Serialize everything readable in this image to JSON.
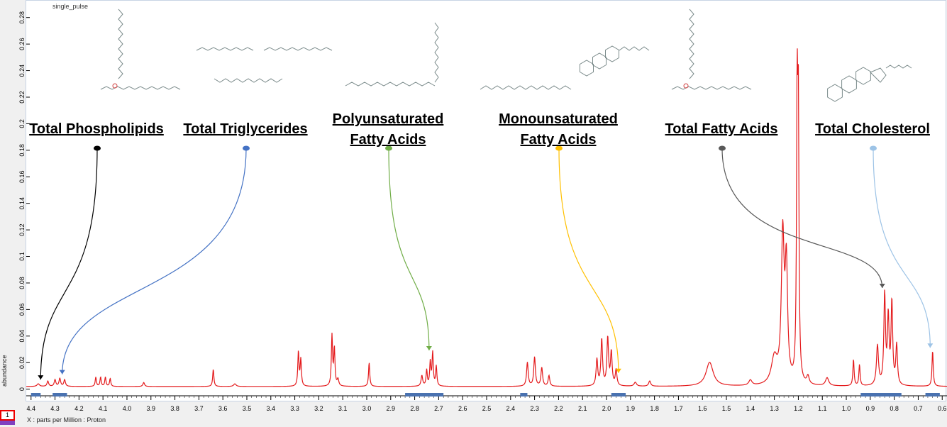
{
  "window": {
    "tab_label": "single_pulse",
    "legend_number": "1"
  },
  "colors": {
    "spectrum": "#e41a1c",
    "frame_bg": "#ffffff",
    "page_bg": "#f0f0f0",
    "integral_bar": "#4a72b0"
  },
  "chart_data": {
    "type": "line",
    "title": "",
    "xlabel": "X : parts per Million : Proton",
    "ylabel": "abundance",
    "xlim": [
      4.42,
      0.58
    ],
    "ylim": [
      -0.005,
      0.29
    ],
    "x_reversed": true,
    "grid": false,
    "x_ticks": [
      "4.4",
      "4.3",
      "4.2",
      "4.1",
      "4.0",
      "3.9",
      "3.8",
      "3.7",
      "3.6",
      "3.5",
      "3.4",
      "3.3",
      "3.2",
      "3.1",
      "3.0",
      "2.9",
      "2.8",
      "2.7",
      "2.6",
      "2.5",
      "2.4",
      "2.3",
      "2.2",
      "2.1",
      "2.0",
      "1.9",
      "1.8",
      "1.7",
      "1.6",
      "1.5",
      "1.4",
      "1.3",
      "1.2",
      "1.1",
      "1.0",
      "0.9",
      "0.8",
      "0.7",
      "0.6"
    ],
    "y_ticks": [
      "0",
      "0.02",
      "0.04",
      "0.06",
      "0.08",
      "0.1",
      "0.12",
      "0.14",
      "0.16",
      "0.18",
      "0.2",
      "0.22",
      "0.24",
      "0.26",
      "0.28"
    ],
    "baseline": 0.002,
    "peaks": [
      {
        "x": 4.37,
        "y": 0.002,
        "w": 0.006
      },
      {
        "x": 4.33,
        "y": 0.004,
        "w": 0.004
      },
      {
        "x": 4.3,
        "y": 0.005,
        "w": 0.004
      },
      {
        "x": 4.28,
        "y": 0.006,
        "w": 0.004
      },
      {
        "x": 4.26,
        "y": 0.005,
        "w": 0.004
      },
      {
        "x": 4.13,
        "y": 0.007,
        "w": 0.003
      },
      {
        "x": 4.11,
        "y": 0.007,
        "w": 0.003
      },
      {
        "x": 4.09,
        "y": 0.007,
        "w": 0.003
      },
      {
        "x": 4.07,
        "y": 0.006,
        "w": 0.003
      },
      {
        "x": 3.93,
        "y": 0.003,
        "w": 0.004
      },
      {
        "x": 3.64,
        "y": 0.013,
        "w": 0.003
      },
      {
        "x": 3.55,
        "y": 0.002,
        "w": 0.006
      },
      {
        "x": 3.285,
        "y": 0.026,
        "w": 0.003
      },
      {
        "x": 3.275,
        "y": 0.02,
        "w": 0.003
      },
      {
        "x": 3.145,
        "y": 0.038,
        "w": 0.003
      },
      {
        "x": 3.135,
        "y": 0.028,
        "w": 0.003
      },
      {
        "x": 3.12,
        "y": 0.005,
        "w": 0.004
      },
      {
        "x": 2.99,
        "y": 0.018,
        "w": 0.003
      },
      {
        "x": 2.77,
        "y": 0.008,
        "w": 0.004
      },
      {
        "x": 2.75,
        "y": 0.012,
        "w": 0.003
      },
      {
        "x": 2.735,
        "y": 0.018,
        "w": 0.003
      },
      {
        "x": 2.725,
        "y": 0.025,
        "w": 0.003
      },
      {
        "x": 2.71,
        "y": 0.015,
        "w": 0.003
      },
      {
        "x": 2.33,
        "y": 0.018,
        "w": 0.004
      },
      {
        "x": 2.3,
        "y": 0.022,
        "w": 0.004
      },
      {
        "x": 2.27,
        "y": 0.014,
        "w": 0.004
      },
      {
        "x": 2.24,
        "y": 0.008,
        "w": 0.004
      },
      {
        "x": 2.04,
        "y": 0.02,
        "w": 0.004
      },
      {
        "x": 2.02,
        "y": 0.035,
        "w": 0.004
      },
      {
        "x": 1.995,
        "y": 0.036,
        "w": 0.004
      },
      {
        "x": 1.98,
        "y": 0.025,
        "w": 0.004
      },
      {
        "x": 1.96,
        "y": 0.012,
        "w": 0.004
      },
      {
        "x": 1.88,
        "y": 0.003,
        "w": 0.006
      },
      {
        "x": 1.82,
        "y": 0.004,
        "w": 0.005
      },
      {
        "x": 1.57,
        "y": 0.018,
        "w": 0.018
      },
      {
        "x": 1.4,
        "y": 0.004,
        "w": 0.008
      },
      {
        "x": 1.265,
        "y": 0.11,
        "w": 0.007
      },
      {
        "x": 1.25,
        "y": 0.085,
        "w": 0.006
      },
      {
        "x": 1.3,
        "y": 0.02,
        "w": 0.015
      },
      {
        "x": 1.205,
        "y": 0.2,
        "w": 0.003
      },
      {
        "x": 1.2,
        "y": 0.19,
        "w": 0.003
      },
      {
        "x": 1.16,
        "y": 0.006,
        "w": 0.006
      },
      {
        "x": 1.08,
        "y": 0.006,
        "w": 0.008
      },
      {
        "x": 0.97,
        "y": 0.02,
        "w": 0.003
      },
      {
        "x": 0.945,
        "y": 0.016,
        "w": 0.003
      },
      {
        "x": 0.87,
        "y": 0.03,
        "w": 0.005
      },
      {
        "x": 0.84,
        "y": 0.068,
        "w": 0.004
      },
      {
        "x": 0.825,
        "y": 0.05,
        "w": 0.004
      },
      {
        "x": 0.81,
        "y": 0.062,
        "w": 0.004
      },
      {
        "x": 0.79,
        "y": 0.03,
        "w": 0.004
      },
      {
        "x": 0.64,
        "y": 0.027,
        "w": 0.003
      }
    ],
    "integral_regions": [
      [
        4.4,
        4.36
      ],
      [
        4.31,
        4.25
      ],
      [
        2.84,
        2.68
      ],
      [
        2.36,
        2.33
      ],
      [
        1.98,
        1.92
      ],
      [
        0.94,
        0.77
      ],
      [
        0.67,
        0.61
      ]
    ],
    "annotations": [
      {
        "name": "total-phospholipids",
        "label_lines": [
          "Total Phospholipids"
        ],
        "target_x": 4.36,
        "target_y": 0.004,
        "color": "#000000"
      },
      {
        "name": "total-triglycerides",
        "label_lines": [
          "Total Triglycerides"
        ],
        "target_x": 4.27,
        "target_y": 0.008,
        "color": "#4472c4"
      },
      {
        "name": "polyunsaturated-fatty-acids",
        "label_lines": [
          "Polyunsaturated",
          "Fatty Acids"
        ],
        "target_x": 2.74,
        "target_y": 0.026,
        "color": "#70ad47"
      },
      {
        "name": "monounsaturated-fatty-acids",
        "label_lines": [
          "Monounsaturated",
          "Fatty Acids"
        ],
        "target_x": 1.95,
        "target_y": 0.009,
        "color": "#ffc000"
      },
      {
        "name": "total-fatty-acids",
        "label_lines": [
          "Total Fatty Acids"
        ],
        "target_x": 0.85,
        "target_y": 0.073,
        "color": "#595959"
      },
      {
        "name": "total-cholesterol",
        "label_lines": [
          "Total Cholesterol"
        ],
        "target_x": 0.65,
        "target_y": 0.028,
        "color": "#9dc3e6"
      }
    ]
  }
}
